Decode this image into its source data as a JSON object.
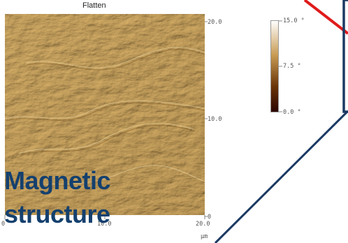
{
  "image_title": "Flatten",
  "afm_image": {
    "right_axis_ticks": [
      "20.0",
      "10.0",
      "0"
    ],
    "bottom_axis_ticks": [
      "0",
      "10.0",
      "20.0"
    ],
    "unit": "µm"
  },
  "colorbar": {
    "ticks": [
      "15.0 °",
      "7.5 °",
      "0.0 °"
    ],
    "colors": [
      "#ffffff",
      "#c79a52",
      "#6a3408",
      "#2a0500"
    ]
  },
  "overlay_label": {
    "line1": "Magnetic",
    "line2": "structure",
    "color": "#14406e"
  },
  "connector_color": "#1b3a63",
  "accent_color": "#e01b1b"
}
